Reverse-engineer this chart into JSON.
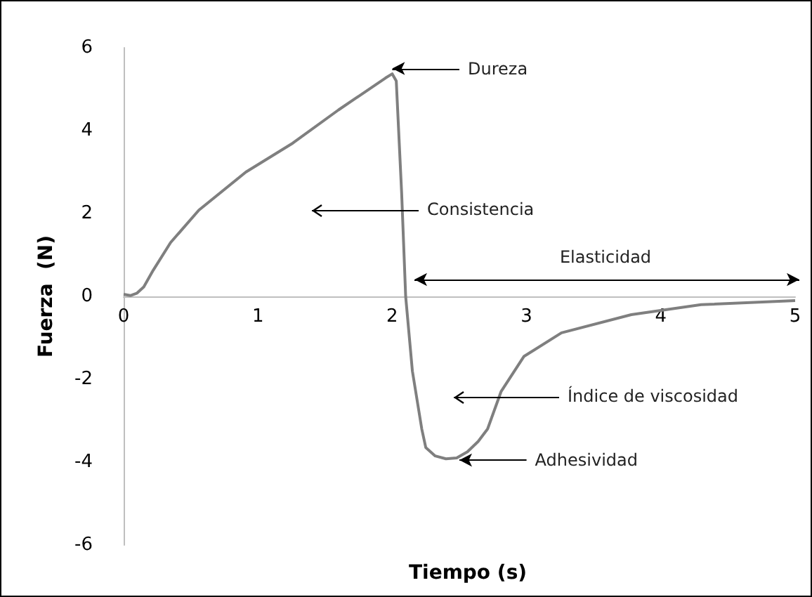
{
  "chart_data": {
    "type": "line",
    "xlabel": "Tiempo (s)",
    "ylabel": "Fuerza  (N)",
    "x": [
      0,
      0.05,
      0.1,
      0.15,
      0.22,
      0.35,
      0.56,
      0.91,
      1.26,
      1.6,
      1.95,
      2.0,
      2.03,
      2.07,
      2.1,
      2.15,
      2.22,
      2.25,
      2.32,
      2.4,
      2.48,
      2.56,
      2.64,
      2.71,
      2.81,
      2.98,
      3.26,
      3.78,
      4.3,
      5.0
    ],
    "series": [
      {
        "color": "#7f7f7f",
        "values": [
          0.05,
          0.02,
          0.08,
          0.23,
          0.63,
          1.3,
          2.08,
          3.0,
          3.7,
          4.5,
          5.27,
          5.37,
          5.2,
          2.5,
          0,
          -1.8,
          -3.2,
          -3.65,
          -3.85,
          -3.92,
          -3.9,
          -3.75,
          -3.5,
          -3.2,
          -2.3,
          -1.45,
          -0.88,
          -0.44,
          -0.2,
          -0.1
        ]
      }
    ],
    "xlim": [
      0,
      5
    ],
    "xticks": [
      0,
      1,
      2,
      3,
      4,
      5
    ],
    "ylim": [
      -6,
      6
    ],
    "yticks": [
      -6,
      -4,
      -2,
      0,
      2,
      4,
      6
    ],
    "marker": "none",
    "line_style": "solid",
    "annotations": [
      {
        "text": "Dureza",
        "x": 2.0,
        "y": 5.5
      },
      "Consistencia",
      "Índice de viscosidad",
      {
        "text": "Adhesividad",
        "x": 2.5,
        "y": -3.95
      },
      "Elasticidad"
    ]
  }
}
